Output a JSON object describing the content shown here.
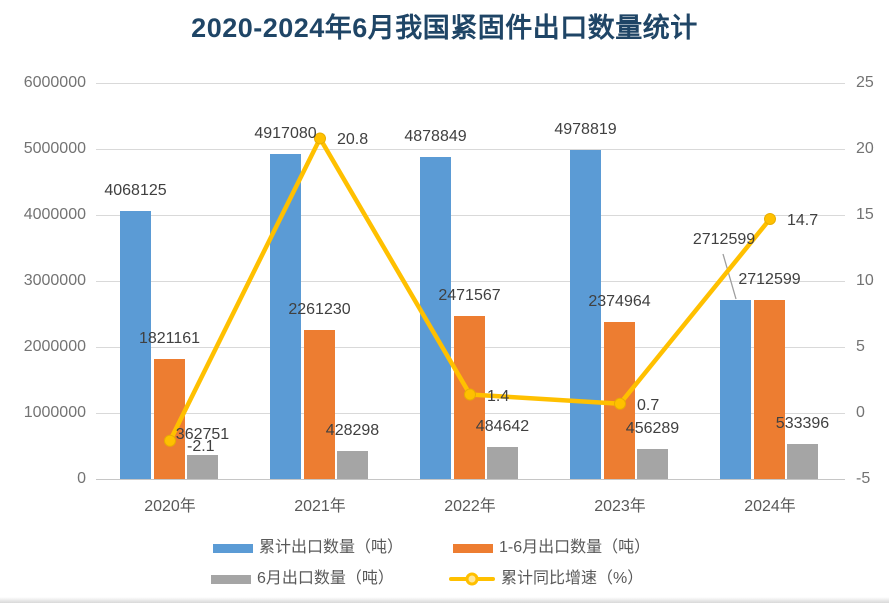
{
  "title": "2020-2024年6月我国紧固件出口数量统计",
  "chart_data": {
    "type": "bar",
    "subtype": "clustered-bars-with-line-overlay",
    "categories": [
      "2020年",
      "2021年",
      "2022年",
      "2023年",
      "2024年"
    ],
    "series": [
      {
        "name": "累计出口数量（吨）",
        "type": "bar",
        "axis": "left",
        "color": "#5B9BD5",
        "values": [
          4068125,
          4917080,
          4878849,
          4978819,
          2712599
        ]
      },
      {
        "name": "1-6月出口数量（吨）",
        "type": "bar",
        "axis": "left",
        "color": "#ED7D31",
        "values": [
          1821161,
          2261230,
          2471567,
          2374964,
          2712599
        ]
      },
      {
        "name": "6月出口数量（吨）",
        "type": "bar",
        "axis": "left",
        "color": "#A5A5A5",
        "values": [
          362751,
          428298,
          484642,
          456289,
          533396
        ]
      },
      {
        "name": "累计同比增速（%）",
        "type": "line",
        "axis": "right",
        "color": "#FFC000",
        "values": [
          -2.1,
          20.8,
          1.4,
          0.7,
          14.7
        ]
      }
    ],
    "left_axis": {
      "min": 0,
      "max": 6000000,
      "ticks": [
        "6000000",
        "5000000",
        "4000000",
        "3000000",
        "2000000",
        "1000000",
        "0"
      ]
    },
    "right_axis": {
      "min": -5,
      "max": 25,
      "ticks": [
        "25",
        "20",
        "15",
        "10",
        "5",
        "0",
        "-5"
      ]
    },
    "grid": true,
    "legend_position": "bottom",
    "data_labels_visible": true,
    "title": "2020-2024年6月我国紧固件出口数量统计"
  },
  "colors": {
    "title": "#1F4566",
    "gridline": "#D9D9D9",
    "tick_text": "#737373",
    "label_text": "#404040",
    "legend_text": "#595959"
  }
}
